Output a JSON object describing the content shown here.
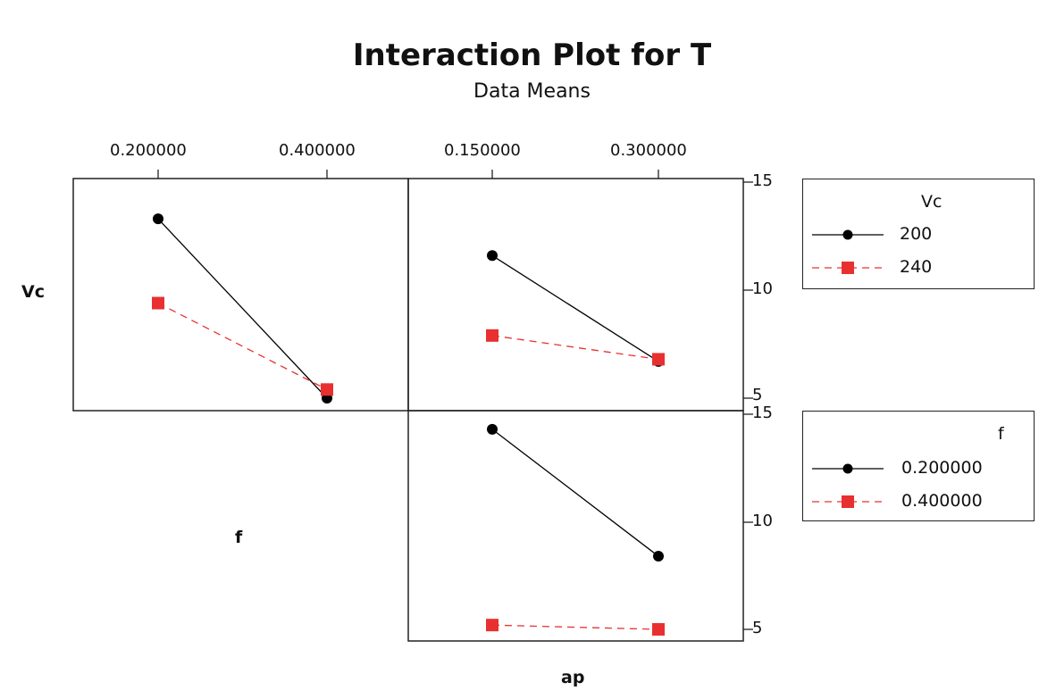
{
  "title": "Interaction Plot for T",
  "subtitle": "Data Means",
  "colors": {
    "series1": "#000000",
    "series2": "#e83030"
  },
  "row_labels": {
    "top": "Vc",
    "middle": "f"
  },
  "bottom_label": "ap",
  "top_ticks": [
    "0.200000",
    "0.400000",
    "0.150000",
    "0.300000"
  ],
  "y_ticks": {
    "top": [
      "15",
      "10",
      "5"
    ],
    "bottom": [
      "15",
      "10",
      "5"
    ]
  },
  "legends": [
    {
      "title": "Vc",
      "items": [
        {
          "label": "200",
          "style": "solid-circle-black"
        },
        {
          "label": "240",
          "style": "dashed-square-red"
        }
      ]
    },
    {
      "title": "f",
      "items": [
        {
          "label": "0.200000",
          "style": "solid-circle-black"
        },
        {
          "label": "0.400000",
          "style": "dashed-square-red"
        }
      ]
    }
  ],
  "chart_data": [
    {
      "type": "line",
      "title": "Interaction Plot for T - Vc by f",
      "x_factor": "f",
      "trace_factor": "Vc",
      "categories": [
        "0.200000",
        "0.400000"
      ],
      "series": [
        {
          "name": "200",
          "values": [
            13.3,
            5.0
          ]
        },
        {
          "name": "240",
          "values": [
            9.4,
            5.4
          ]
        }
      ],
      "ylim": [
        5,
        15
      ]
    },
    {
      "type": "line",
      "title": "Interaction Plot for T - Vc by ap",
      "x_factor": "ap",
      "trace_factor": "Vc",
      "categories": [
        "0.150000",
        "0.300000"
      ],
      "series": [
        {
          "name": "200",
          "values": [
            11.6,
            6.7
          ]
        },
        {
          "name": "240",
          "values": [
            7.9,
            6.8
          ]
        }
      ],
      "ylim": [
        5,
        15
      ]
    },
    {
      "type": "line",
      "title": "Interaction Plot for T - f by ap",
      "x_factor": "ap",
      "trace_factor": "f",
      "categories": [
        "0.150000",
        "0.300000"
      ],
      "series": [
        {
          "name": "0.200000",
          "values": [
            14.3,
            8.4
          ]
        },
        {
          "name": "0.400000",
          "values": [
            5.2,
            5.0
          ]
        }
      ],
      "ylim": [
        5,
        15
      ]
    }
  ]
}
